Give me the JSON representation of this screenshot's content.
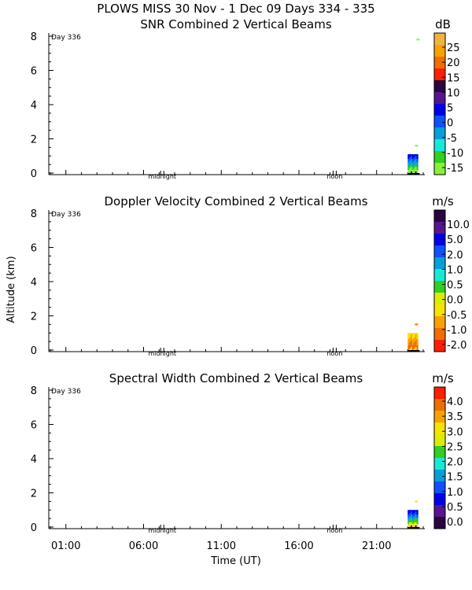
{
  "figure_title": "PLOWS MISS  30 Nov -  1 Dec 09 Days 334 - 335",
  "y_axis_label": "Altitude (km)",
  "x_axis_label": "Time (UT)",
  "x_tick_labels": [
    "01:00",
    "06:00",
    "11:00",
    "16:00",
    "21:00"
  ],
  "y_tick_labels": [
    "0",
    "2",
    "4",
    "6",
    "8"
  ],
  "day_label": "Day 336",
  "midnight_label": "midnight",
  "noon_label": "noon",
  "chart_data": [
    {
      "type": "heatmap",
      "title": "SNR Combined 2 Vertical Beams",
      "xlabel": "",
      "ylabel": "",
      "ylim": [
        0,
        8
      ],
      "colorbar": {
        "unit": "dB",
        "tick_labels": [
          "25",
          "20",
          "15",
          "10",
          "5",
          "0",
          "-5",
          "-10",
          "-15"
        ],
        "colors": [
          "#f3b33f",
          "#f7a200",
          "#ee6e00",
          "#ff1e00",
          "#2a0540",
          "#551690",
          "#0000e8",
          "#1050ff",
          "#05a0d8",
          "#18e8d8",
          "#30cf20",
          "#88f038"
        ]
      },
      "echo_cluster": {
        "time_range": [
          "23:00",
          "23:40"
        ],
        "altitude_range_km": [
          0.0,
          1.1
        ],
        "colors": [
          "#0000e8",
          "#1050ff",
          "#05a0d8",
          "#30cf20",
          "#88f038"
        ],
        "scattered_points_altitude_km": [
          1.6,
          7.8
        ]
      }
    },
    {
      "type": "heatmap",
      "title": "Doppler Velocity Combined 2 Vertical Beams",
      "xlabel": "",
      "ylabel": "Altitude (km)",
      "ylim": [
        0,
        8
      ],
      "colorbar": {
        "unit": "m/s",
        "tick_labels": [
          "10.0",
          "5.0",
          "2.0",
          "1.0",
          "0.5",
          "0.0",
          "-0.5",
          "-1.0",
          "-2.0"
        ],
        "colors": [
          "#2a0540",
          "#551690",
          "#0000e8",
          "#1050ff",
          "#05a0d8",
          "#18e8d8",
          "#30cf20",
          "#dcec00",
          "#f7e200",
          "#f7a200",
          "#ee6e00",
          "#ff1e00"
        ]
      },
      "echo_cluster": {
        "time_range": [
          "23:00",
          "23:40"
        ],
        "altitude_range_km": [
          0.0,
          1.0
        ],
        "colors": [
          "#f7e200",
          "#f7a200",
          "#ee6e00"
        ],
        "scattered_points_altitude_km": [
          1.5
        ]
      }
    },
    {
      "type": "heatmap",
      "title": "Spectral Width Combined 2 Vertical Beams",
      "xlabel": "",
      "ylabel": "",
      "ylim": [
        0,
        8
      ],
      "colorbar": {
        "unit": "m/s",
        "tick_labels": [
          "4.0",
          "3.5",
          "3.0",
          "2.5",
          "2.0",
          "1.5",
          "1.0",
          "0.5",
          "0.0"
        ],
        "colors": [
          "#ff1e00",
          "#ee6e00",
          "#f7a200",
          "#f7e200",
          "#dcec00",
          "#30cf20",
          "#18e8d8",
          "#05a0d8",
          "#1050ff",
          "#0000e8",
          "#551690",
          "#2a0540"
        ]
      },
      "echo_cluster": {
        "time_range": [
          "23:00",
          "23:40"
        ],
        "altitude_range_km": [
          0.0,
          1.0
        ],
        "colors": [
          "#0000e8",
          "#1050ff",
          "#05a0d8",
          "#30cf20",
          "#f7e200"
        ],
        "scattered_points_altitude_km": [
          1.5
        ]
      }
    }
  ]
}
